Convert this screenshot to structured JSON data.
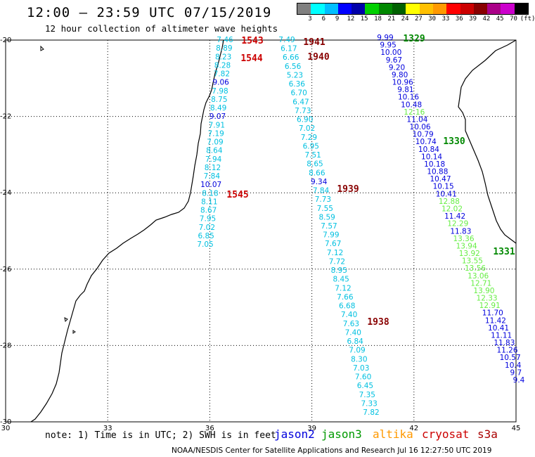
{
  "header": {
    "title": "12:00 – 23:59 UTC 07/15/2019",
    "subtitle": "12 hour collection of altimeter wave heights"
  },
  "color_scale": {
    "unit": "(ft)",
    "colors": [
      "#808080",
      "#00ffff",
      "#00bfff",
      "#0000ff",
      "#0000aa",
      "#00d000",
      "#008800",
      "#006000",
      "#ffff00",
      "#ffc000",
      "#ff9900",
      "#ff0000",
      "#cc0000",
      "#880000",
      "#aa0088",
      "#cc00cc",
      "#000000"
    ],
    "labels": [
      "3",
      "6",
      "9",
      "12",
      "15",
      "18",
      "21",
      "24",
      "27",
      "30",
      "33",
      "36",
      "39",
      "42",
      "45",
      "70"
    ]
  },
  "axes": {
    "lon_labels": [
      "30",
      "33",
      "36",
      "39",
      "42",
      "45"
    ],
    "lat_labels": [
      "-20",
      "-22",
      "-24",
      "-26",
      "-28",
      "-30"
    ]
  },
  "footer": {
    "note": "note: 1) Time is in UTC; 2) SWH is in feet",
    "credit": "NOAA/NESDIS Center for Satellite Applications and Research    Jul 16 12:27:50 UTC 2019",
    "satellites": [
      {
        "name": "jason2",
        "color": "#0000dd"
      },
      {
        "name": "jason3",
        "color": "#009900"
      },
      {
        "name": "altika",
        "color": "#ff9900"
      },
      {
        "name": "cryosat",
        "color": "#cc0000"
      },
      {
        "name": "s3a",
        "color": "#aa0000"
      }
    ]
  },
  "tracks": [
    {
      "name": "track-a",
      "values": [
        "7.46",
        "8.89",
        "8.23",
        "8.28",
        "7.82",
        "9.06",
        "7.98",
        "8.75",
        "8.49",
        "9.07",
        "7.91",
        "7.19",
        "7.09",
        "8.64",
        "7.94",
        "8.12",
        "7.84",
        "10.07",
        "8.18",
        "8.11",
        "8.67",
        "7.95",
        "7.02",
        "6.85",
        "7.05"
      ],
      "colors": [
        "#00c0e0",
        "#00c0e0",
        "#00c0e0",
        "#00c0e0",
        "#00c0e0",
        "#0000dd",
        "#00c0e0",
        "#00c0e0",
        "#00c0e0",
        "#0000dd",
        "#00c0e0",
        "#00c0e0",
        "#00c0e0",
        "#00c0e0",
        "#00c0e0",
        "#00c0e0",
        "#00c0e0",
        "#0000dd",
        "#00c0e0",
        "#00c0e0",
        "#00c0e0",
        "#00c0e0",
        "#00c0e0",
        "#00c0e0",
        "#00c0e0"
      ]
    },
    {
      "name": "track-b",
      "values": [
        "7.49",
        "6.17",
        "6.66",
        "6.56",
        "5.23",
        "6.36",
        "6.70",
        "6.47",
        "7.73",
        "6.90",
        "7.02",
        "7.29",
        "6.95",
        "7.51",
        "8.65",
        "8.66",
        "9.34",
        "7.84",
        "7.73",
        "7.55",
        "8.59",
        "7.57",
        "7.99",
        "7.67",
        "7.12",
        "7.72",
        "8.95",
        "8.45",
        "7.12",
        "7.66",
        "6.68",
        "7.40",
        "7.63",
        "7.40",
        "6.84",
        "7.09",
        "8.30",
        "7.03",
        "7.60",
        "6.45",
        "7.35",
        "7.33",
        "7.82"
      ],
      "colors": [
        "#00c0e0",
        "#00c0e0",
        "#00c0e0",
        "#00c0e0",
        "#00c0e0",
        "#00c0e0",
        "#00c0e0",
        "#00c0e0",
        "#00c0e0",
        "#00c0e0",
        "#00c0e0",
        "#00c0e0",
        "#00c0e0",
        "#00c0e0",
        "#00c0e0",
        "#00c0e0",
        "#0000dd",
        "#00c0e0",
        "#00c0e0",
        "#00c0e0",
        "#00c0e0",
        "#00c0e0",
        "#00c0e0",
        "#00c0e0",
        "#00c0e0",
        "#00c0e0",
        "#00c0e0",
        "#00c0e0",
        "#00c0e0",
        "#00c0e0",
        "#00c0e0",
        "#00c0e0",
        "#00c0e0",
        "#00c0e0",
        "#00c0e0",
        "#00c0e0",
        "#00c0e0",
        "#00c0e0",
        "#00c0e0",
        "#00c0e0",
        "#00c0e0",
        "#00c0e0",
        "#00c0e0"
      ]
    },
    {
      "name": "track-c",
      "values": [
        "9.99",
        "9.95",
        "10.00",
        "9.67",
        "9.20",
        "9.80",
        "10.96",
        "9.81",
        "10.16",
        "10.48",
        "12.16",
        "11.04",
        "10.06",
        "10.79",
        "10.74",
        "10.84",
        "10.14",
        "10.18",
        "10.88",
        "10.47",
        "10.15",
        "10.41",
        "12.88",
        "12.02",
        "11.42",
        "12.29",
        "11.83",
        "13.36",
        "13.94",
        "13.92",
        "13.55",
        "13.56",
        "13.06",
        "12.71",
        "13.90",
        "12.33",
        "12.91",
        "11.70",
        "11.42",
        "10.41",
        "11.11",
        "11.83",
        "11.26",
        "10.57",
        "10.4",
        "9.7",
        "9.4"
      ],
      "colors": [
        "#0000dd",
        "#0000dd",
        "#0000dd",
        "#0000dd",
        "#0000dd",
        "#0000dd",
        "#0000dd",
        "#0000dd",
        "#0000dd",
        "#0000dd",
        "#66ee44",
        "#0000dd",
        "#0000dd",
        "#0000dd",
        "#0000dd",
        "#0000dd",
        "#0000dd",
        "#0000dd",
        "#0000dd",
        "#0000dd",
        "#0000dd",
        "#0000dd",
        "#66ee44",
        "#66ee44",
        "#0000dd",
        "#66ee44",
        "#0000dd",
        "#66ee44",
        "#66ee44",
        "#66ee44",
        "#66ee44",
        "#66ee44",
        "#66ee44",
        "#66ee44",
        "#66ee44",
        "#66ee44",
        "#66ee44",
        "#0000dd",
        "#0000dd",
        "#0000dd",
        "#0000dd",
        "#0000dd",
        "#0000dd",
        "#0000dd",
        "#0000dd",
        "#0000dd",
        "#0000dd"
      ]
    }
  ],
  "time_labels": [
    {
      "text": "1543",
      "color": "#cc0000"
    },
    {
      "text": "1544",
      "color": "#cc0000"
    },
    {
      "text": "1545",
      "color": "#cc0000"
    },
    {
      "text": "1941",
      "color": "#880000"
    },
    {
      "text": "1940",
      "color": "#880000"
    },
    {
      "text": "1939",
      "color": "#880000"
    },
    {
      "text": "1938",
      "color": "#880000"
    },
    {
      "text": "1329",
      "color": "#008800"
    },
    {
      "text": "1330",
      "color": "#008800"
    },
    {
      "text": "1331",
      "color": "#008800"
    }
  ]
}
